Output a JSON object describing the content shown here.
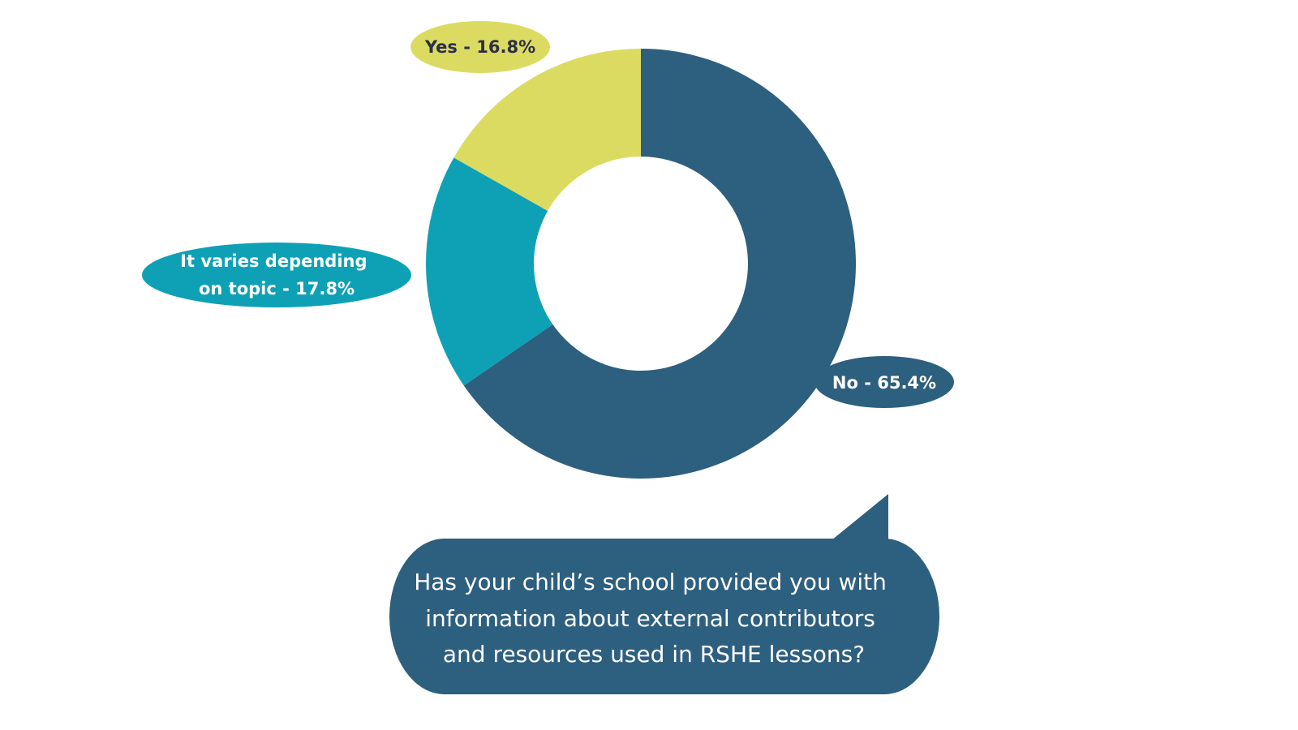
{
  "chart_data": {
    "type": "pie",
    "donut": true,
    "title": "",
    "slices": [
      {
        "label": "No",
        "value": 65.4,
        "display": "No - 65.4%",
        "color": "#2d5f7f",
        "text_color": "#ffffff"
      },
      {
        "label": "It varies depending on topic",
        "value": 17.8,
        "display_lines": [
          "It varies depending",
          "on topic - 17.8%"
        ],
        "color": "#0ea1b5",
        "text_color": "#ffffff"
      },
      {
        "label": "Yes",
        "value": 16.8,
        "display": "Yes - 16.8%",
        "color": "#dbdb62",
        "text_color": "#2b2f4a"
      }
    ],
    "legend": "none"
  },
  "question": {
    "lines": [
      "Has your child’s school provided you with",
      "information about external contributors",
      "and resources used in RSHE lessons?"
    ],
    "bubble_color": "#2d5f7f"
  }
}
